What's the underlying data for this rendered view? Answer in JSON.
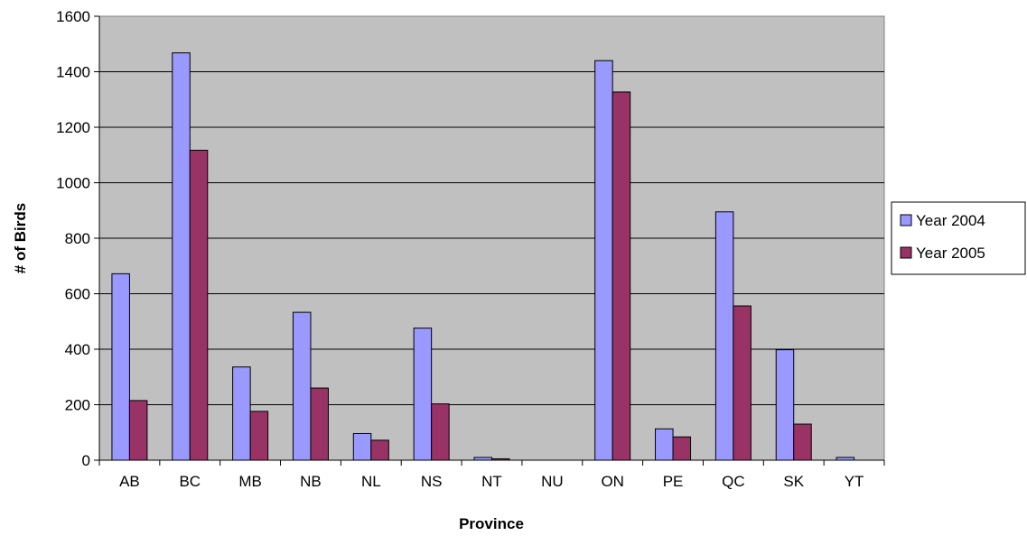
{
  "chart_data": {
    "type": "bar",
    "title": "",
    "xlabel": "Province",
    "ylabel": "# of Birds",
    "categories": [
      "AB",
      "BC",
      "MB",
      "NB",
      "NL",
      "NS",
      "NT",
      "NU",
      "ON",
      "PE",
      "QC",
      "SK",
      "YT"
    ],
    "series": [
      {
        "name": "Year 2004",
        "color": "#9999ff",
        "values": [
          672,
          1468,
          336,
          533,
          96,
          476,
          10,
          0,
          1440,
          113,
          895,
          398,
          10
        ]
      },
      {
        "name": "Year 2005",
        "color": "#993366",
        "values": [
          215,
          1117,
          176,
          260,
          72,
          203,
          5,
          0,
          1327,
          84,
          556,
          130,
          0
        ]
      }
    ],
    "ylim": [
      0,
      1600
    ],
    "yticks": [
      0,
      200,
      400,
      600,
      800,
      1000,
      1200,
      1400,
      1600
    ],
    "grid": true,
    "plot_background": "#c0c0c0",
    "legend_position": "right"
  }
}
